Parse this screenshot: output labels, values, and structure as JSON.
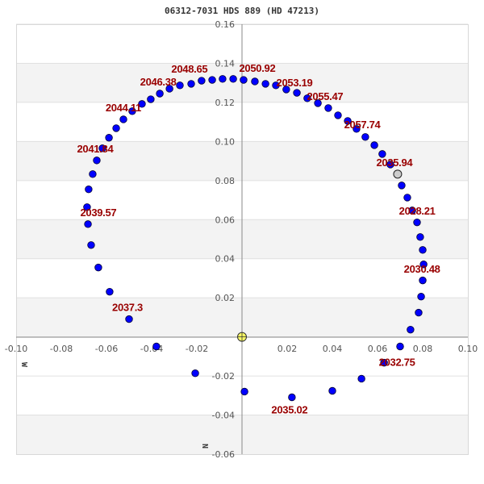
{
  "chart_data": {
    "type": "scatter",
    "title": "06312-7031 HDS 889 (HD 47213)",
    "xlabel": "W",
    "ylabel": "N",
    "xlim": [
      -0.1,
      0.1
    ],
    "ylim": [
      -0.06,
      0.16
    ],
    "x_ticks": [
      "-0.10",
      "-0.08",
      "-0.06",
      "-0.04",
      "-0.02",
      "0.02",
      "0.04",
      "0.06",
      "0.08",
      "0.10"
    ],
    "x_tick_values": [
      -0.1,
      -0.08,
      -0.06,
      -0.04,
      -0.02,
      0.02,
      0.04,
      0.06,
      0.08,
      0.1
    ],
    "y_ticks": [
      "0.16",
      "0.14",
      "0.12",
      "0.10",
      "0.08",
      "0.06",
      "0.04",
      "0.02",
      "-0.02",
      "-0.04",
      "-0.06"
    ],
    "y_tick_values": [
      0.16,
      0.14,
      0.12,
      0.1,
      0.08,
      0.06,
      0.04,
      0.02,
      -0.02,
      -0.04,
      -0.06
    ],
    "grid": "horizontal alternating bands",
    "colors": {
      "orbit_point": "#0000ff",
      "label": "#990000",
      "current_position": "#cccccc",
      "primary_star": "#ffff66",
      "band": "#f3f3f3"
    },
    "primary_star": {
      "x": 0,
      "y": 0
    },
    "current_position": {
      "x": 0.0689,
      "y": 0.0833,
      "label": "2035.94"
    },
    "series": [
      {
        "points": [
          [
            0.0707,
            0.0775
          ],
          [
            0.0732,
            0.0713
          ],
          [
            0.0754,
            0.0647
          ],
          [
            0.0775,
            0.0586
          ],
          [
            0.0789,
            0.0511
          ],
          [
            0.08,
            0.0445
          ],
          [
            0.0804,
            0.0371
          ],
          [
            0.08,
            0.0289
          ],
          [
            0.0793,
            0.0206
          ],
          [
            0.0782,
            0.0124
          ],
          [
            0.0746,
            0.0037
          ],
          [
            0.07,
            -0.0049
          ],
          [
            0.0629,
            -0.0132
          ],
          [
            0.0529,
            -0.0214
          ],
          [
            0.04,
            -0.0276
          ],
          [
            0.0221,
            -0.0309
          ],
          [
            0.0011,
            -0.028
          ],
          [
            -0.0207,
            -0.0186
          ],
          [
            -0.0379,
            -0.0049
          ],
          [
            -0.05,
            0.0091
          ],
          [
            -0.0586,
            0.0231
          ],
          [
            -0.0636,
            0.0355
          ],
          [
            -0.0668,
            0.047
          ],
          [
            -0.0682,
            0.0577
          ],
          [
            -0.0686,
            0.0664
          ],
          [
            -0.0679,
            0.0755
          ],
          [
            -0.0661,
            0.0833
          ],
          [
            -0.0643,
            0.0903
          ],
          [
            -0.0618,
            0.0965
          ],
          [
            -0.0589,
            0.1019
          ],
          [
            -0.0557,
            0.1068
          ],
          [
            -0.0525,
            0.1113
          ],
          [
            -0.0486,
            0.1155
          ],
          [
            -0.0443,
            0.1192
          ],
          [
            -0.0404,
            0.1216
          ],
          [
            -0.0364,
            0.1245
          ],
          [
            -0.0321,
            0.127
          ],
          [
            -0.0275,
            0.1287
          ],
          [
            -0.0225,
            0.1295
          ],
          [
            -0.0179,
            0.1311
          ],
          [
            -0.0132,
            0.1315
          ],
          [
            -0.0086,
            0.132
          ],
          [
            -0.0039,
            0.132
          ],
          [
            0.0007,
            0.1315
          ],
          [
            0.0057,
            0.1307
          ],
          [
            0.0104,
            0.1295
          ],
          [
            0.015,
            0.1287
          ],
          [
            0.0196,
            0.1266
          ],
          [
            0.0243,
            0.1249
          ],
          [
            0.0289,
            0.1221
          ],
          [
            0.0336,
            0.1196
          ],
          [
            0.0382,
            0.1171
          ],
          [
            0.0425,
            0.1134
          ],
          [
            0.0468,
            0.1105
          ],
          [
            0.0507,
            0.1064
          ],
          [
            0.0546,
            0.1023
          ],
          [
            0.0586,
            0.0981
          ],
          [
            0.0621,
            0.0936
          ],
          [
            0.0657,
            0.0882
          ]
        ]
      }
    ],
    "annotations": [
      {
        "text": "2028.21",
        "point": 2
      },
      {
        "text": "2030.48",
        "point": 6
      },
      {
        "text": "2032.75",
        "point": 12
      },
      {
        "text": "2035.02",
        "point": 15
      },
      {
        "text": "2037.3",
        "point": 19
      },
      {
        "text": "2039.57",
        "point": 24
      },
      {
        "text": "2041.84",
        "point": 28
      },
      {
        "text": "2044.11",
        "point": 32
      },
      {
        "text": "2046.38",
        "point": 36
      },
      {
        "text": "2048.65",
        "point": 39
      },
      {
        "text": "2050.92",
        "point": 43
      },
      {
        "text": "2053.19",
        "point": 46
      },
      {
        "text": "2055.47",
        "point": 49
      },
      {
        "text": "2057.74",
        "point": 53
      }
    ]
  }
}
